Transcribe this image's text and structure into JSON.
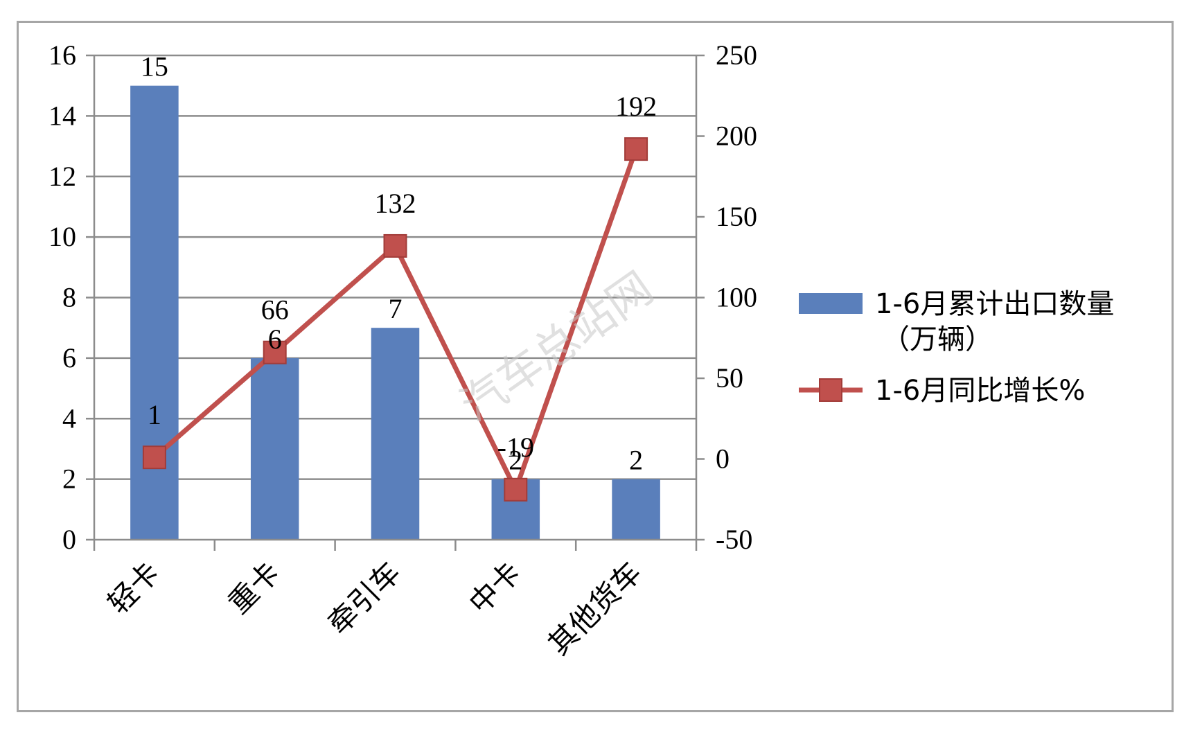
{
  "chart_data": {
    "type": "bar",
    "categories": [
      "轻卡",
      "重卡",
      "牵引车",
      "中卡",
      "其他货车"
    ],
    "series": [
      {
        "name": "1-6月累计出口数量（万辆）",
        "kind": "bar",
        "axis": "left",
        "color": "#5a7fbb",
        "values": [
          15,
          6,
          7,
          2,
          2
        ],
        "labels": [
          "15",
          "6",
          "7",
          "2",
          "2"
        ]
      },
      {
        "name": "1-6月同比增长%",
        "kind": "line",
        "axis": "right",
        "color": "#c0504d",
        "values": [
          1,
          66,
          132,
          -19,
          192
        ],
        "labels": [
          "1",
          "66",
          "132",
          "-19",
          "192"
        ]
      }
    ],
    "legend_name_lines": [
      [
        "1-6月累计出口数量",
        "（万辆）"
      ],
      [
        "1-6月同比增长%"
      ]
    ],
    "y_left": {
      "min": 0,
      "max": 16,
      "ticks": [
        "0",
        "2",
        "4",
        "6",
        "8",
        "10",
        "12",
        "14",
        "16"
      ]
    },
    "y_right": {
      "min": -50,
      "max": 250,
      "ticks": [
        "-50",
        "0",
        "50",
        "100",
        "150",
        "200",
        "250"
      ]
    },
    "grid": true,
    "legend_position": "right",
    "title": "",
    "xlabel": "",
    "ylabel": ""
  },
  "watermark_text": "汽车总站网"
}
